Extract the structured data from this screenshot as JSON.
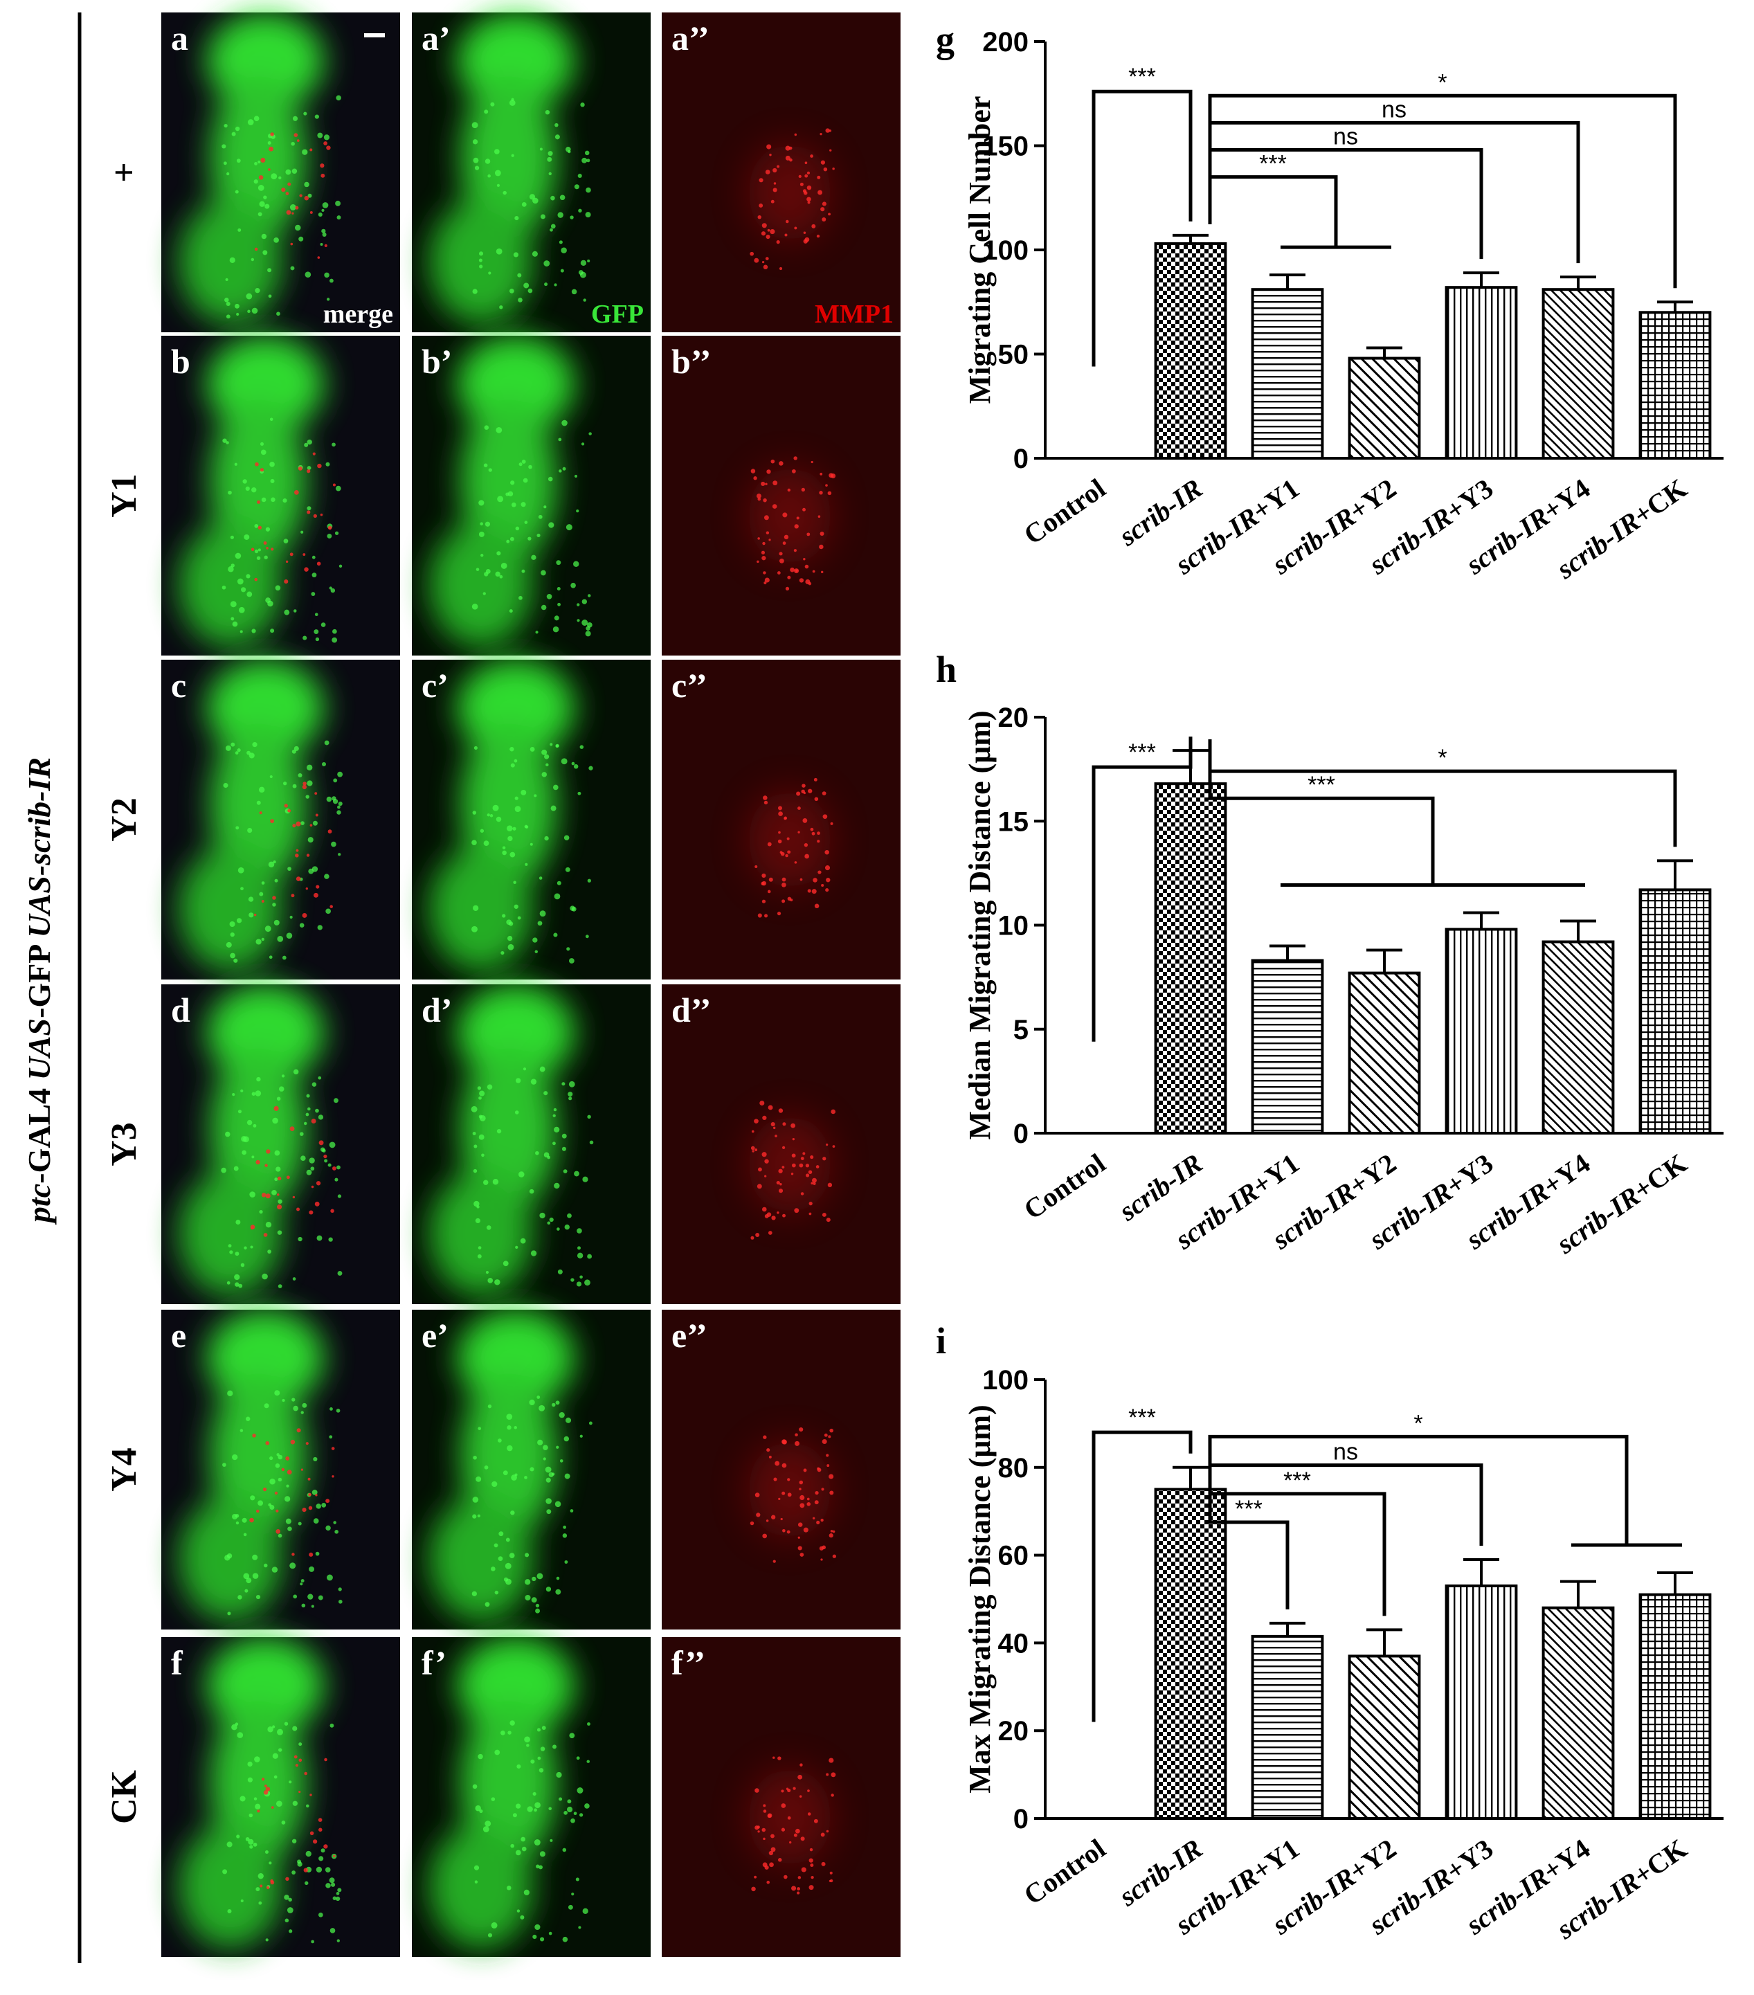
{
  "left_label": {
    "part1": "ptc",
    "part2": "-GAL4 ",
    "part3": "UAS",
    "part4": "-GFP ",
    "part5": "UAS-scrib-IR"
  },
  "rows": [
    {
      "condition": "+",
      "letter": "a"
    },
    {
      "condition": "Y1",
      "letter": "b"
    },
    {
      "condition": "Y2",
      "letter": "c"
    },
    {
      "condition": "Y3",
      "letter": "d"
    },
    {
      "condition": "Y4",
      "letter": "e"
    },
    {
      "condition": "CK",
      "letter": "f"
    }
  ],
  "channel_labels": [
    "merge",
    "GFP",
    "MMP1"
  ],
  "channel_label_colors": [
    "#ffffff",
    "#39e639",
    "#e00000"
  ],
  "panel_letter_suffixes": [
    "",
    "’",
    "’’"
  ],
  "chart_data": [
    {
      "panel": "g",
      "type": "bar",
      "ylabel": "Migrating Cell Number",
      "ylim": [
        0,
        200
      ],
      "yticks": [
        0,
        50,
        100,
        150,
        200
      ],
      "categories": [
        "Control",
        "scrib-IR",
        "scrib-IR+Y1",
        "scrib-IR+Y2",
        "scrib-IR+Y3",
        "scrib-IR+Y4",
        "scrib-IR+CK"
      ],
      "values": [
        0,
        103,
        81,
        48,
        82,
        81,
        70
      ],
      "errors": [
        0,
        4,
        7,
        5,
        7,
        6,
        5
      ],
      "significance": [
        {
          "label": "***",
          "from": "Control",
          "to": "scrib-IR"
        },
        {
          "label": "***",
          "from": "scrib-IR",
          "to": [
            "scrib-IR+Y1",
            "scrib-IR+Y2"
          ]
        },
        {
          "label": "ns",
          "from": "scrib-IR",
          "to": "scrib-IR+Y3"
        },
        {
          "label": "ns",
          "from": "scrib-IR",
          "to": "scrib-IR+Y4"
        },
        {
          "label": "*",
          "from": "scrib-IR",
          "to": "scrib-IR+CK"
        }
      ]
    },
    {
      "panel": "h",
      "type": "bar",
      "ylabel": "Median Migrating Distance (μm)",
      "ylim": [
        0,
        20
      ],
      "yticks": [
        0,
        5,
        10,
        15,
        20
      ],
      "categories": [
        "Control",
        "scrib-IR",
        "scrib-IR+Y1",
        "scrib-IR+Y2",
        "scrib-IR+Y3",
        "scrib-IR+Y4",
        "scrib-IR+CK"
      ],
      "values": [
        0,
        16.8,
        8.3,
        7.7,
        9.8,
        9.2,
        11.7
      ],
      "errors": [
        0,
        1.6,
        0.7,
        1.1,
        0.8,
        1.0,
        1.4
      ],
      "significance": [
        {
          "label": "***",
          "from": "Control",
          "to": "scrib-IR"
        },
        {
          "label": "***",
          "from": "scrib-IR",
          "to": [
            "scrib-IR+Y1",
            "scrib-IR+Y2",
            "scrib-IR+Y3",
            "scrib-IR+Y4"
          ]
        },
        {
          "label": "*",
          "from": "scrib-IR",
          "to": "scrib-IR+CK"
        }
      ]
    },
    {
      "panel": "i",
      "type": "bar",
      "ylabel": "Max Migrating Distance (μm)",
      "ylim": [
        0,
        100
      ],
      "yticks": [
        0,
        20,
        40,
        60,
        80,
        100
      ],
      "categories": [
        "Control",
        "scrib-IR",
        "scrib-IR+Y1",
        "scrib-IR+Y2",
        "scrib-IR+Y3",
        "scrib-IR+Y4",
        "scrib-IR+CK"
      ],
      "values": [
        0,
        75,
        41.5,
        37,
        53,
        48,
        51
      ],
      "errors": [
        0,
        5,
        3,
        6,
        6,
        6,
        5
      ],
      "significance": [
        {
          "label": "***",
          "from": "Control",
          "to": "scrib-IR"
        },
        {
          "label": "***",
          "from": "scrib-IR",
          "to": "scrib-IR+Y1"
        },
        {
          "label": "***",
          "from": "scrib-IR",
          "to": "scrib-IR+Y2"
        },
        {
          "label": "ns",
          "from": "scrib-IR",
          "to": "scrib-IR+Y3"
        },
        {
          "label": "*",
          "from": "scrib-IR",
          "to": [
            "scrib-IR+Y4",
            "scrib-IR+CK"
          ]
        }
      ]
    }
  ]
}
